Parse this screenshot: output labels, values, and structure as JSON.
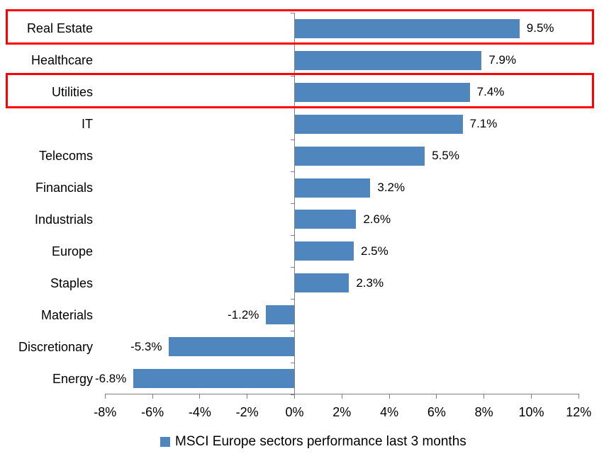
{
  "chart_data": {
    "type": "bar",
    "orientation": "horizontal",
    "title": "",
    "categories": [
      "Real Estate",
      "Healthcare",
      "Utilities",
      "IT",
      "Telecoms",
      "Financials",
      "Industrials",
      "Europe",
      "Staples",
      "Materials",
      "Discretionary",
      "Energy"
    ],
    "values": [
      9.5,
      7.9,
      7.4,
      7.1,
      5.5,
      3.2,
      2.6,
      2.5,
      2.3,
      -1.2,
      -5.3,
      -6.8
    ],
    "value_labels": [
      "9.5%",
      "7.9%",
      "7.4%",
      "7.1%",
      "5.5%",
      "3.2%",
      "2.6%",
      "2.5%",
      "2.3%",
      "-1.2%",
      "-5.3%",
      "-6.8%"
    ],
    "highlighted_categories": [
      "Real Estate",
      "Utilities"
    ],
    "x_ticks": [
      "-8%",
      "-6%",
      "-4%",
      "-2%",
      "0%",
      "2%",
      "4%",
      "6%",
      "8%",
      "10%",
      "12%"
    ],
    "x_tick_values": [
      -8,
      -6,
      -4,
      -2,
      0,
      2,
      4,
      6,
      8,
      10,
      12
    ],
    "xlim": [
      -8,
      12
    ],
    "grid": "off",
    "legend_position": "bottom-center",
    "legend": "MSCI Europe sectors performance last 3 months",
    "colors": {
      "bar": "#4E86BD",
      "highlight_border": "#FF0000",
      "axis": "#7F7F7F",
      "text": "#000000",
      "background": "#FFFFFF"
    }
  }
}
